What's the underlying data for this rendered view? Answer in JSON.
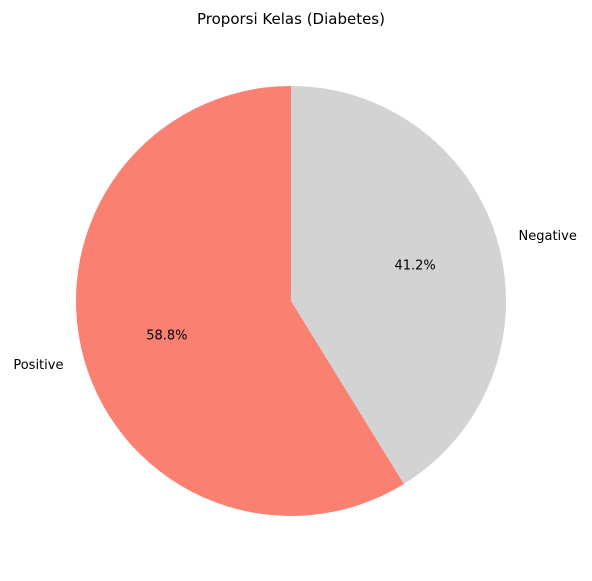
{
  "chart_data": {
    "type": "pie",
    "title": "Proporsi Kelas (Diabetes)",
    "categories": [
      "Negative",
      "Positive"
    ],
    "values": [
      41.2,
      58.8
    ],
    "percent_labels": [
      "41.2%",
      "58.8%"
    ],
    "colors": [
      "#d3d3d3",
      "#fa8072"
    ],
    "start_angle_deg": 90,
    "direction": "clockwise",
    "legend": "none"
  }
}
